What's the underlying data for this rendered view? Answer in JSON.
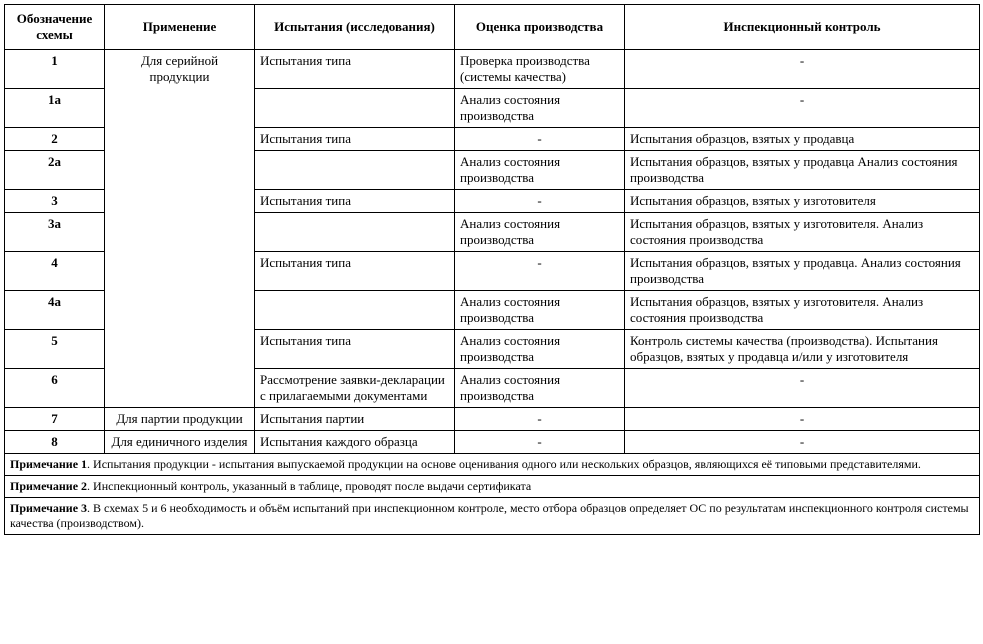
{
  "headers": {
    "c1": "Обозначение схемы",
    "c2": "Применение",
    "c3": "Испытания (исследования)",
    "c4": "Оценка производства",
    "c5": "Инспекционный контроль"
  },
  "app_groups": {
    "g1": "Для серийной продукции",
    "g2": "Для партии продукции",
    "g3": "Для единичного изделия"
  },
  "rows": {
    "r1": {
      "scheme": "1",
      "tests": "Испытания типа",
      "eval": "Проверка производства (системы качества)",
      "insp": "-"
    },
    "r1a": {
      "scheme": "1а",
      "tests": "",
      "eval": "Анализ состояния производства",
      "insp": "-"
    },
    "r2": {
      "scheme": "2",
      "tests": "Испытания типа",
      "eval": "-",
      "insp": "Испытания образцов, взятых у продавца"
    },
    "r2a": {
      "scheme": "2а",
      "tests": "",
      "eval": "Анализ состояния производства",
      "insp": "Испытания образцов, взятых у продавца Анализ состояния производства"
    },
    "r3": {
      "scheme": "3",
      "tests": "Испытания типа",
      "eval": "-",
      "insp": "Испытания образцов, взятых у изготовителя"
    },
    "r3a": {
      "scheme": "3а",
      "tests": "",
      "eval": "Анализ состояния производства",
      "insp": "Испытания образцов, взятых у изготовителя. Анализ состояния производства"
    },
    "r4": {
      "scheme": "4",
      "tests": "Испытания типа",
      "eval": "-",
      "insp": "Испытания образцов, взятых у продавца. Анализ состояния производства"
    },
    "r4a": {
      "scheme": "4а",
      "tests": "",
      "eval": "Анализ состояния производства",
      "insp": "Испытания образцов, взятых у изготовителя. Анализ состояния производства"
    },
    "r5": {
      "scheme": "5",
      "tests": "Испытания типа",
      "eval": "Анализ состояния производства",
      "insp": "Контроль системы качества (производства). Испытания образцов, взятых у продавца и/или у изготовителя"
    },
    "r6": {
      "scheme": "6",
      "tests": "Рассмотрение заявки-декларации с прилагаемыми документами",
      "eval": "Анализ состояния производства",
      "insp": "-"
    },
    "r7": {
      "scheme": "7",
      "tests": "Испытания партии",
      "eval": "-",
      "insp": "-"
    },
    "r8": {
      "scheme": "8",
      "tests": "Испытания каждого образца",
      "eval": "-",
      "insp": "-"
    }
  },
  "notes": {
    "n1_label": "Примечание 1",
    "n1_text": ".  Испытания продукции - испытания выпускаемой продукции на основе оценивания одного или нескольких образцов, являющихся её типовыми представителями.",
    "n2_label": "Примечание 2",
    "n2_text": ".  Инспекционный контроль, указанный в таблице, проводят после выдачи сертификата",
    "n3_label": "Примечание 3",
    "n3_text": ".  В схемах 5 и 6 необходимость и объём испытаний при инспекционном контроле, место отбора образцов определяет ОС по результатам инспекционного контроля системы качества (производством)."
  }
}
